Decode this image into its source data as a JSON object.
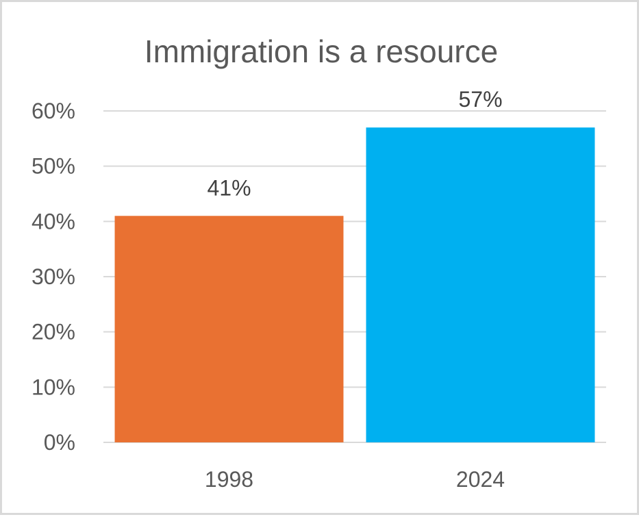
{
  "chart_data": {
    "type": "bar",
    "title": "Immigration is a resource",
    "categories": [
      "1998",
      "2024"
    ],
    "values": [
      41,
      57
    ],
    "value_labels": [
      "41%",
      "57%"
    ],
    "ylim": [
      0,
      60
    ],
    "y_ticks": [
      0,
      10,
      20,
      30,
      40,
      50,
      60
    ],
    "y_tick_labels": [
      "0%",
      "10%",
      "20%",
      "30%",
      "40%",
      "50%",
      "60%"
    ],
    "grid": true,
    "legend": "none",
    "colors": [
      "#E97132",
      "#00B0F0"
    ]
  }
}
